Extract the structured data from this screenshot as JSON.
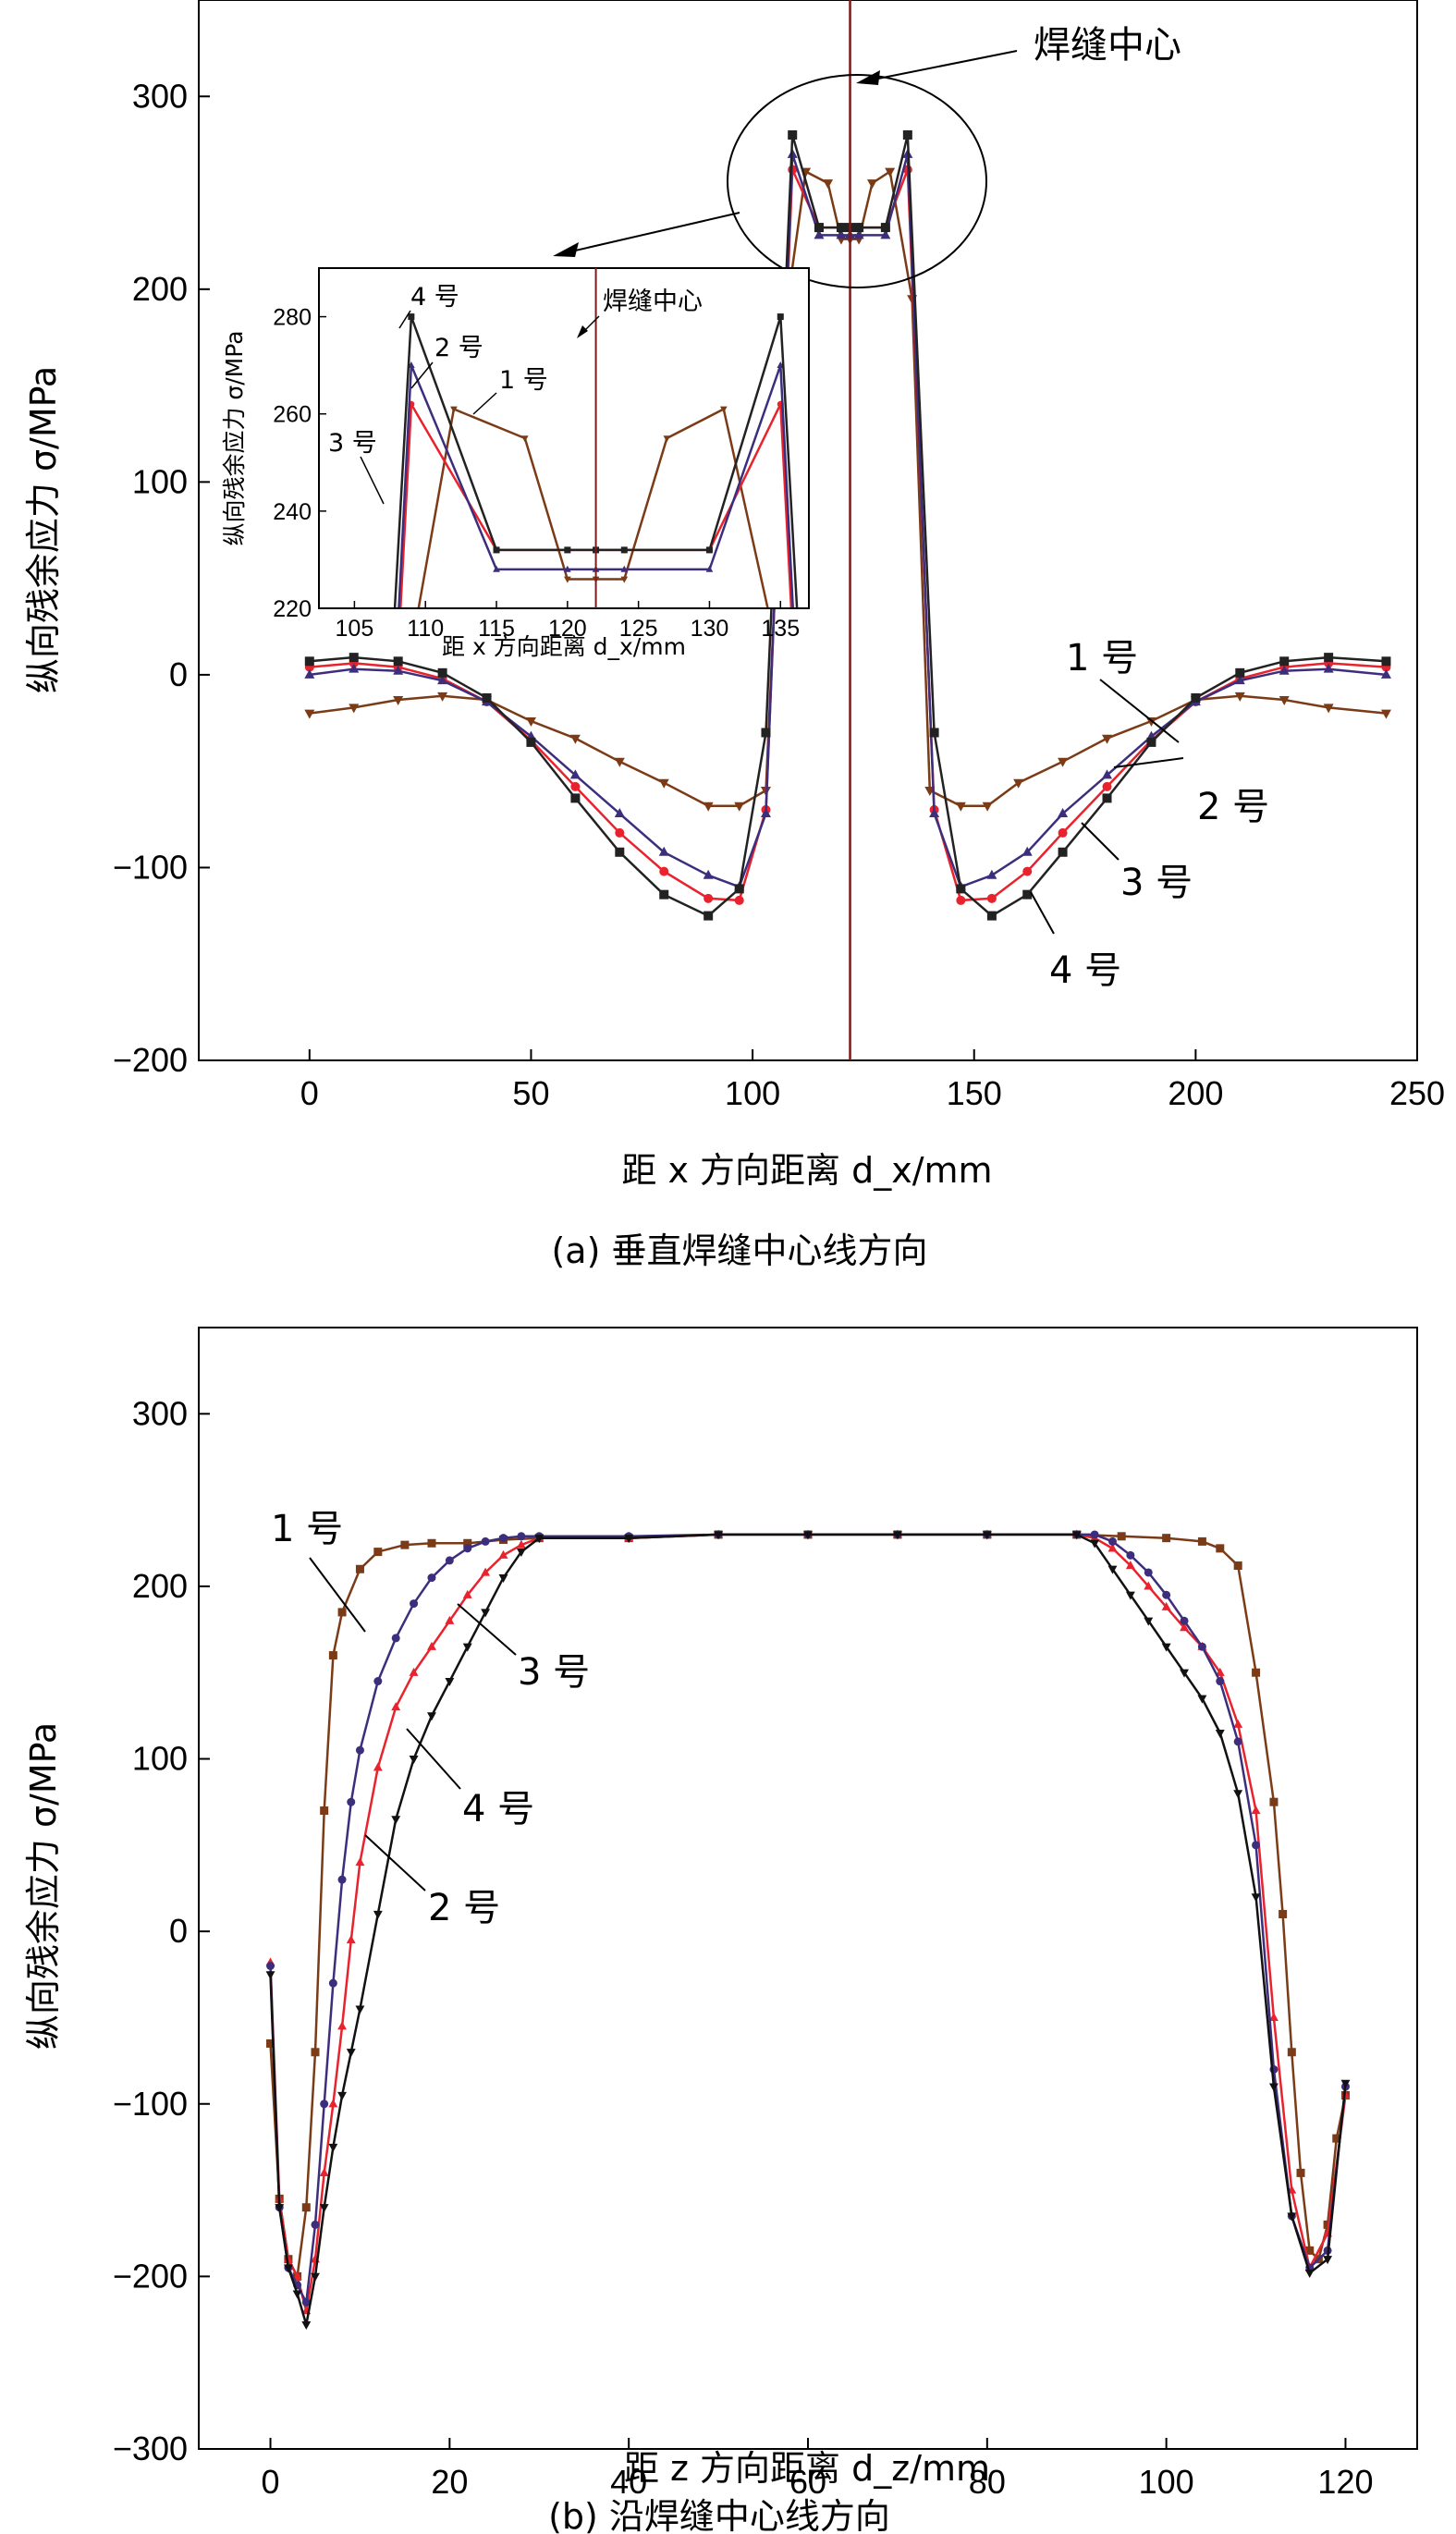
{
  "chart_data": [
    {
      "panel": "a",
      "type": "line",
      "caption": "(a) 垂直焊缝中心线方向",
      "xlabel": "距 x 方向距离 d_x/mm",
      "ylabel": "纵向残余应力 σ/MPa",
      "xlim": [
        -25,
        250
      ],
      "ylim": [
        -200,
        350
      ],
      "xticks": [
        0,
        50,
        100,
        150,
        200,
        250
      ],
      "yticks": [
        -200,
        -100,
        0,
        100,
        200,
        300
      ],
      "weld_center_x": 122,
      "weld_center_label": "焊缝中心",
      "series": [
        {
          "name": "1 号",
          "color": "#7b3b16",
          "marker": "triangle-down",
          "x": [
            0,
            10,
            20,
            30,
            40,
            50,
            60,
            70,
            80,
            90,
            97,
            103,
            108,
            112,
            117,
            120,
            122,
            124,
            127,
            131,
            136,
            140,
            147,
            153,
            160,
            170,
            180,
            190,
            200,
            210,
            220,
            230,
            243
          ],
          "y": [
            -20,
            -17,
            -13,
            -11,
            -13,
            -24,
            -33,
            -45,
            -56,
            -68,
            -68,
            -60,
            195,
            261,
            255,
            226,
            226,
            226,
            255,
            261,
            195,
            -60,
            -68,
            -68,
            -56,
            -45,
            -33,
            -24,
            -13,
            -11,
            -13,
            -17,
            -20
          ]
        },
        {
          "name": "2 号",
          "color": "#e8232d",
          "marker": "circle",
          "x": [
            0,
            10,
            20,
            30,
            40,
            50,
            60,
            70,
            80,
            90,
            97,
            103,
            109,
            115,
            120,
            122,
            124,
            130,
            135,
            141,
            147,
            154,
            162,
            170,
            180,
            190,
            200,
            210,
            220,
            230,
            243
          ],
          "y": [
            4,
            6,
            4,
            -2,
            -14,
            -34,
            -58,
            -82,
            -102,
            -116,
            -117,
            -70,
            262,
            232,
            232,
            232,
            232,
            232,
            262,
            -70,
            -117,
            -116,
            -102,
            -82,
            -58,
            -34,
            -14,
            -2,
            4,
            6,
            4
          ]
        },
        {
          "name": "3 号",
          "color": "#3d2e7d",
          "marker": "triangle-up",
          "x": [
            0,
            10,
            20,
            30,
            40,
            50,
            60,
            70,
            80,
            90,
            97,
            103,
            109,
            115,
            120,
            122,
            124,
            130,
            135,
            141,
            147,
            154,
            162,
            170,
            180,
            190,
            200,
            210,
            220,
            230,
            243
          ],
          "y": [
            0,
            3,
            2,
            -3,
            -14,
            -32,
            -52,
            -72,
            -92,
            -104,
            -110,
            -72,
            270,
            228,
            228,
            228,
            228,
            228,
            270,
            -72,
            -110,
            -104,
            -92,
            -72,
            -52,
            -32,
            -14,
            -3,
            2,
            3,
            0
          ]
        },
        {
          "name": "4 号",
          "color": "#222222",
          "marker": "square",
          "x": [
            0,
            10,
            20,
            30,
            40,
            50,
            60,
            70,
            80,
            90,
            97,
            103,
            109,
            115,
            120,
            122,
            124,
            130,
            135,
            141,
            147,
            154,
            162,
            170,
            180,
            190,
            200,
            210,
            220,
            230,
            243
          ],
          "y": [
            7,
            9,
            7,
            1,
            -12,
            -35,
            -64,
            -92,
            -114,
            -125,
            -111,
            -30,
            280,
            232,
            232,
            232,
            232,
            232,
            280,
            -30,
            -111,
            -125,
            -114,
            -92,
            -64,
            -35,
            -12,
            1,
            7,
            9,
            7
          ]
        }
      ],
      "inset": {
        "xlabel": "距 x 方向距离 d_x/mm",
        "ylabel": "纵向残余应力 σ/MPa",
        "xlim": [
          102.5,
          137
        ],
        "ylim": [
          220,
          290
        ],
        "xticks": [
          105,
          110,
          115,
          120,
          125,
          130,
          135
        ],
        "yticks": [
          220,
          240,
          260,
          280
        ],
        "weld_center_label": "焊缝中心"
      },
      "annotations": [
        "1 号",
        "2 号",
        "3 号",
        "4 号"
      ]
    },
    {
      "panel": "b",
      "type": "line",
      "caption": "(b) 沿焊缝中心线方向",
      "xlabel": "距 z 方向距离 d_z/mm",
      "ylabel": "纵向残余应力 σ/MPa",
      "xlim": [
        -8,
        128
      ],
      "ylim": [
        -300,
        350
      ],
      "xticks": [
        0,
        20,
        40,
        60,
        80,
        100,
        120
      ],
      "yticks": [
        -300,
        -200,
        -100,
        0,
        100,
        200,
        300
      ],
      "series": [
        {
          "name": "1 号",
          "color": "#7b3b16",
          "marker": "square",
          "x": [
            0,
            1,
            2,
            3,
            4,
            5,
            6,
            7,
            8,
            10,
            12,
            15,
            18,
            22,
            26,
            30,
            40,
            50,
            60,
            70,
            80,
            90,
            95,
            100,
            104,
            106,
            108,
            110,
            112,
            113,
            114,
            115,
            116,
            117,
            118,
            119,
            120
          ],
          "y": [
            -65,
            -155,
            -190,
            -200,
            -160,
            -70,
            70,
            160,
            185,
            210,
            220,
            224,
            225,
            225,
            227,
            228,
            228,
            230,
            230,
            230,
            230,
            230,
            229,
            228,
            226,
            222,
            212,
            150,
            75,
            10,
            -70,
            -140,
            -185,
            -190,
            -170,
            -120,
            -95
          ]
        },
        {
          "name": "2 号",
          "color": "#e8232d",
          "marker": "triangle-up",
          "x": [
            0,
            1,
            2,
            3,
            4,
            5,
            6,
            7,
            8,
            9,
            10,
            12,
            14,
            16,
            18,
            20,
            22,
            24,
            26,
            28,
            30,
            40,
            50,
            60,
            70,
            80,
            90,
            92,
            94,
            96,
            98,
            100,
            102,
            104,
            106,
            108,
            110,
            112,
            114,
            116,
            118,
            120
          ],
          "y": [
            -18,
            -155,
            -190,
            -200,
            -220,
            -190,
            -140,
            -100,
            -55,
            -5,
            40,
            95,
            130,
            150,
            165,
            180,
            195,
            208,
            218,
            224,
            228,
            228,
            230,
            230,
            230,
            230,
            230,
            228,
            222,
            212,
            200,
            188,
            176,
            165,
            150,
            120,
            70,
            -50,
            -150,
            -195,
            -175,
            -95
          ]
        },
        {
          "name": "3 号",
          "color": "#3d2e7d",
          "marker": "circle",
          "x": [
            0,
            1,
            2,
            3,
            4,
            5,
            6,
            7,
            8,
            9,
            10,
            12,
            14,
            16,
            18,
            20,
            22,
            24,
            26,
            28,
            30,
            40,
            50,
            60,
            70,
            80,
            90,
            92,
            94,
            96,
            98,
            100,
            102,
            104,
            106,
            108,
            110,
            112,
            114,
            116,
            118,
            120
          ],
          "y": [
            -20,
            -160,
            -195,
            -205,
            -215,
            -170,
            -100,
            -30,
            30,
            75,
            105,
            145,
            170,
            190,
            205,
            215,
            222,
            226,
            228,
            229,
            229,
            229,
            230,
            230,
            230,
            230,
            230,
            230,
            226,
            218,
            208,
            195,
            180,
            165,
            145,
            110,
            50,
            -80,
            -165,
            -195,
            -185,
            -90
          ]
        },
        {
          "name": "4 号",
          "color": "#111111",
          "marker": "triangle-down",
          "x": [
            0,
            1,
            2,
            3,
            4,
            5,
            6,
            7,
            8,
            9,
            10,
            12,
            14,
            16,
            18,
            20,
            22,
            24,
            26,
            28,
            30,
            40,
            50,
            60,
            70,
            80,
            90,
            92,
            94,
            96,
            98,
            100,
            102,
            104,
            106,
            108,
            110,
            112,
            114,
            116,
            118,
            120
          ],
          "y": [
            -25,
            -160,
            -195,
            -210,
            -228,
            -200,
            -160,
            -125,
            -95,
            -70,
            -45,
            10,
            65,
            100,
            125,
            145,
            165,
            185,
            205,
            220,
            228,
            228,
            230,
            230,
            230,
            230,
            230,
            225,
            210,
            195,
            180,
            165,
            150,
            135,
            115,
            80,
            20,
            -90,
            -165,
            -198,
            -190,
            -88
          ]
        }
      ],
      "annotations": [
        "1 号",
        "2 号",
        "3 号",
        "4 号"
      ]
    }
  ]
}
